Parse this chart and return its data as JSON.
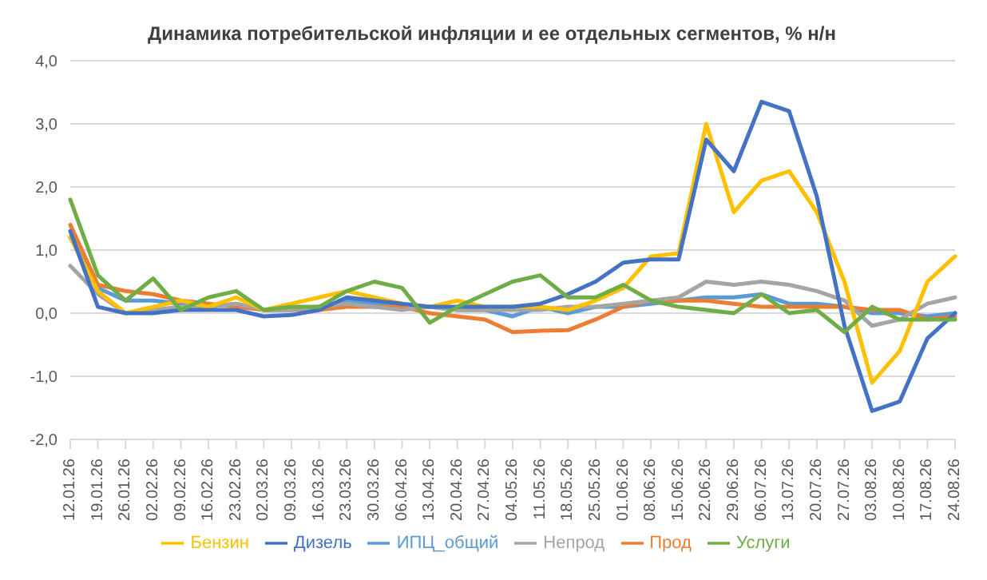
{
  "chart_data": {
    "type": "line",
    "title": "Динамика потребительской инфляции и ее отдельных сегментов, % н/н",
    "categories": [
      "12.01.26",
      "19.01.26",
      "26.01.26",
      "02.02.26",
      "09.02.26",
      "16.02.26",
      "23.02.26",
      "02.03.26",
      "09.03.26",
      "16.03.26",
      "23.03.26",
      "30.03.26",
      "06.04.26",
      "13.04.26",
      "20.04.26",
      "27.04.26",
      "04.05.26",
      "11.05.26",
      "18.05.26",
      "25.05.26",
      "01.06.26",
      "08.06.26",
      "15.06.26",
      "22.06.26",
      "29.06.26",
      "06.07.26",
      "13.07.26",
      "20.07.26",
      "27.07.26",
      "03.08.26",
      "10.08.26",
      "17.08.26",
      "24.08.26"
    ],
    "series": [
      {
        "name": "ИПЦ_общий",
        "color": "#5b9bd5",
        "values": [
          1.2,
          0.4,
          0.2,
          0.2,
          0.15,
          0.1,
          0.15,
          0.05,
          0.05,
          0.1,
          0.2,
          0.15,
          0.1,
          0.1,
          0.05,
          0.05,
          -0.05,
          0.1,
          0,
          0.1,
          0.1,
          0.15,
          0.2,
          0.25,
          0.25,
          0.3,
          0.15,
          0.15,
          0.1,
          0,
          0,
          -0.05,
          0
        ]
      },
      {
        "name": "Прод",
        "color": "#ed7d31",
        "values": [
          1.4,
          0.45,
          0.35,
          0.3,
          0.2,
          0.15,
          0.1,
          0.05,
          0.05,
          0.05,
          0.1,
          0.1,
          0.1,
          0,
          -0.05,
          -0.1,
          -0.3,
          -0.28,
          -0.27,
          -0.1,
          0.1,
          0.2,
          0.2,
          0.2,
          0.15,
          0.1,
          0.1,
          0.1,
          0.1,
          0.05,
          0.05,
          -0.1,
          -0.05
        ]
      },
      {
        "name": "Непрод",
        "color": "#a5a5a5",
        "values": [
          0.75,
          0.3,
          0,
          0.05,
          0.1,
          0.1,
          0.15,
          0.05,
          0.05,
          0.1,
          0.15,
          0.1,
          0.05,
          0.1,
          0.05,
          0.05,
          0.05,
          0.05,
          0.1,
          0.1,
          0.15,
          0.2,
          0.25,
          0.5,
          0.45,
          0.5,
          0.45,
          0.35,
          0.2,
          -0.2,
          -0.1,
          0.15,
          0.25
        ]
      },
      {
        "name": "Бензин",
        "color": "#ffc000",
        "values": [
          1.2,
          0.35,
          0,
          0.1,
          0.2,
          0.1,
          0.25,
          0.05,
          0.15,
          0.25,
          0.35,
          0.25,
          0.15,
          0.1,
          0.2,
          0.1,
          0.1,
          0.1,
          0.05,
          0.2,
          0.4,
          0.9,
          0.95,
          3.0,
          1.6,
          2.1,
          2.25,
          1.6,
          0.5,
          -1.1,
          -0.6,
          0.5,
          0.9
        ]
      },
      {
        "name": "Дизель",
        "color": "#4472c4",
        "values": [
          1.3,
          0.1,
          0,
          0,
          0.05,
          0.05,
          0.05,
          -0.05,
          -0.03,
          0.05,
          0.25,
          0.2,
          0.15,
          0.1,
          0.1,
          0.1,
          0.1,
          0.15,
          0.3,
          0.5,
          0.8,
          0.85,
          0.85,
          2.75,
          2.25,
          3.35,
          3.2,
          1.85,
          -0.2,
          -1.55,
          -1.4,
          -0.4,
          0
        ]
      },
      {
        "name": "Услуги",
        "color": "#70ad47",
        "values": [
          1.8,
          0.6,
          0.2,
          0.55,
          0.05,
          0.25,
          0.35,
          0.05,
          0.1,
          0.1,
          0.35,
          0.5,
          0.4,
          -0.15,
          0.1,
          0.3,
          0.5,
          0.6,
          0.25,
          0.25,
          0.45,
          0.2,
          0.1,
          0.05,
          0,
          0.3,
          0,
          0.05,
          -0.3,
          0.1,
          -0.1,
          -0.1,
          -0.1
        ]
      }
    ],
    "ylim": [
      -2,
      4
    ],
    "yticks": [
      {
        "value": -2,
        "label": "-2,0"
      },
      {
        "value": -1,
        "label": "-1,0"
      },
      {
        "value": 0,
        "label": "0,0"
      },
      {
        "value": 1,
        "label": "1,0"
      },
      {
        "value": 2,
        "label": "2,0"
      },
      {
        "value": 3,
        "label": "3,0"
      },
      {
        "value": 4,
        "label": "4,0"
      }
    ],
    "grid": "y",
    "legend": "bottom",
    "marker": "none",
    "line_style": "solid"
  }
}
